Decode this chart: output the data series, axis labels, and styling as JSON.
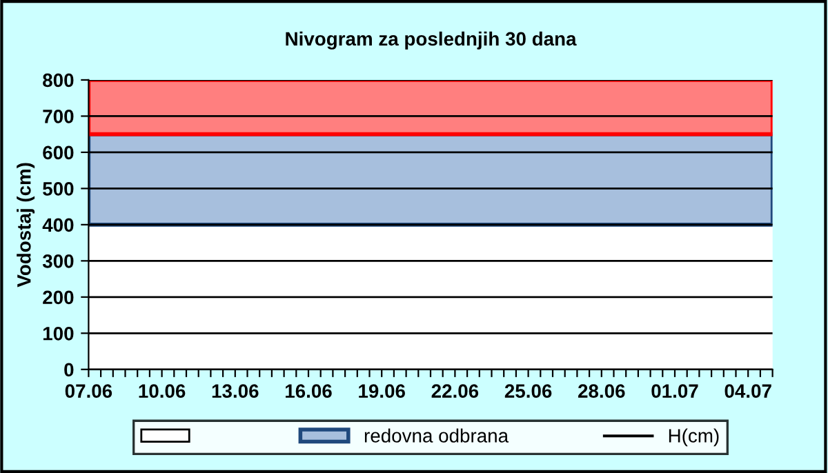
{
  "chart_data": {
    "type": "line",
    "title": "Nivogram za poslednjih 30 dana",
    "ylabel": "Vodostaj (cm)",
    "series": [
      {
        "name": "H(cm)",
        "color": "#000000",
        "values": [
          null,
          null,
          null,
          null,
          null,
          null,
          null,
          null,
          null,
          null,
          null,
          null,
          null,
          null,
          null,
          null,
          null,
          null,
          null,
          null,
          null,
          null,
          null,
          null,
          null,
          null,
          null,
          null,
          null,
          null,
          null,
          null,
          null,
          null,
          null,
          null,
          null,
          null,
          null,
          null,
          null,
          null,
          null,
          null,
          null,
          null,
          null,
          null,
          null,
          null,
          null,
          null,
          null,
          null,
          null,
          null,
          null
        ]
      }
    ],
    "categories": [
      "07.06",
      null,
      null,
      null,
      null,
      null,
      "10.06",
      null,
      null,
      null,
      null,
      null,
      "13.06",
      null,
      null,
      null,
      null,
      null,
      "16.06",
      null,
      null,
      null,
      null,
      null,
      "19.06",
      null,
      null,
      null,
      null,
      null,
      "22.06",
      null,
      null,
      null,
      null,
      null,
      "25.06",
      null,
      null,
      null,
      null,
      null,
      "28.06",
      null,
      null,
      null,
      null,
      null,
      "01.07",
      null,
      null,
      null,
      null,
      null,
      "04.07",
      null,
      null
    ],
    "ylim": [
      0,
      800
    ],
    "yticks": [
      0,
      100,
      200,
      300,
      400,
      500,
      600,
      700,
      800
    ],
    "bands": [
      {
        "axis": "y",
        "from": 0,
        "to": 400,
        "color": "#ffffff",
        "label": null
      },
      {
        "axis": "y",
        "from": 400,
        "to": 650,
        "color": "#a7bfdd",
        "label": "redovna odbrana"
      },
      {
        "axis": "y",
        "from": 650,
        "to": 800,
        "color": "#ff7f7f"
      }
    ],
    "grid": "y",
    "legend": "bottom"
  }
}
